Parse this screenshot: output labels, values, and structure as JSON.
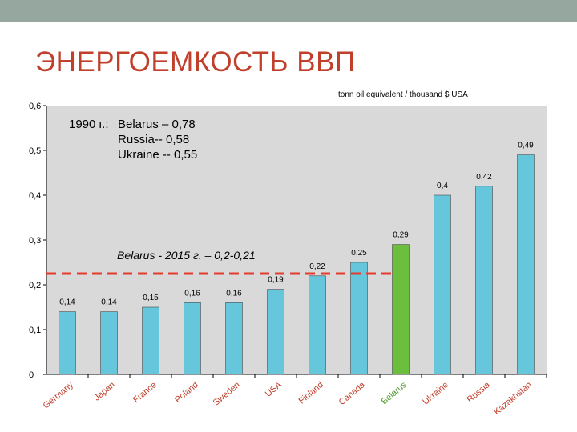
{
  "slide": {
    "title": "ЭНЕРГОЕМКОСТЬ ВВП",
    "accent_color": "#c0402c",
    "topbar_color": "#95a79f"
  },
  "chart_data": {
    "type": "bar",
    "title": "",
    "ylabel": "tonn oil equivalent / thousand $ USA",
    "xlabel": "",
    "categories": [
      "Germany",
      "Japan",
      "France",
      "Poland",
      "Sweden",
      "USA",
      "Finland",
      "Canada",
      "Belarus",
      "Ukraine",
      "Russia",
      "Kazakhstan"
    ],
    "values": [
      0.14,
      0.14,
      0.15,
      0.16,
      0.16,
      0.19,
      0.22,
      0.25,
      0.29,
      0.4,
      0.42,
      0.49
    ],
    "value_labels": [
      "0,14",
      "0,14",
      "0,15",
      "0,16",
      "0,16",
      "0,19",
      "0,22",
      "0,25",
      "0,29",
      "0,4",
      "0,42",
      "0,49"
    ],
    "ylim": [
      0,
      0.6
    ],
    "yticks": [
      0,
      0.1,
      0.2,
      0.3,
      0.4,
      0.5,
      0.6
    ],
    "ytick_labels": [
      "0",
      "0,1",
      "0,2",
      "0,3",
      "0,4",
      "0,5",
      "0,6"
    ],
    "grid": false,
    "bar_color": "#66c7dc",
    "highlight_color": "#6cbf3c",
    "highlight_index": 8,
    "plot_background": "#d9d9d9",
    "annotations": {
      "note_1990": [
        {
          "label": "1990 г.:",
          "text": "Belarus – 0,78"
        },
        {
          "label": "",
          "text": "Russia-- 0,58"
        },
        {
          "label": "",
          "text": "Ukraine -- 0,55"
        }
      ],
      "target_line": {
        "text": "Belarus -  2015 г. – 0,2-0,21",
        "value": 0.225,
        "color": "#e53a2c"
      }
    }
  }
}
